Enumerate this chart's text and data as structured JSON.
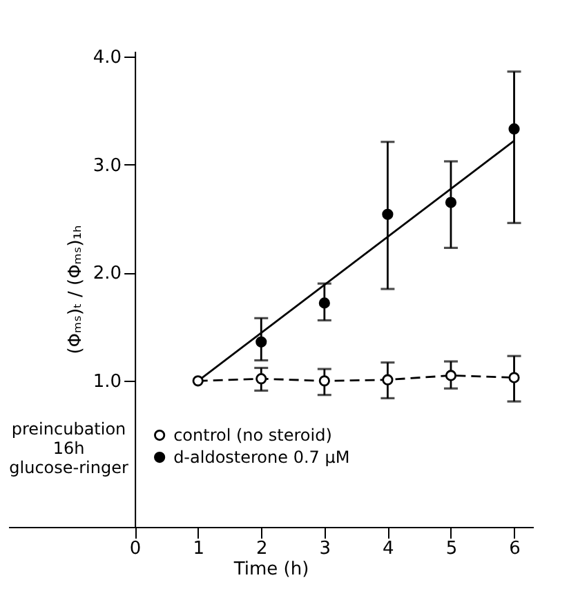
{
  "chart_data": {
    "type": "line",
    "xlabel": "Time (h)",
    "ylabel": "(Φₘₛ)ₜ / (Φₘₛ)₁ₕ",
    "x": [
      1,
      2,
      3,
      4,
      5,
      6
    ],
    "series": [
      {
        "name": "control (no steroid)",
        "type": "line",
        "color": "#000000",
        "line_style": "dashed",
        "marker": "circle",
        "values": [
          1.0,
          1.02,
          1.0,
          1.01,
          1.05,
          1.03
        ],
        "errors": [
          null,
          [
            0.91,
            1.12
          ],
          [
            0.87,
            1.11
          ],
          [
            0.84,
            1.17
          ],
          [
            0.93,
            1.18
          ],
          [
            0.81,
            1.23
          ]
        ]
      },
      {
        "name": "d-aldosterone  0.7 µM",
        "type": "scatter",
        "color": "#000000",
        "marker": "circle",
        "values": [
          null,
          1.36,
          1.72,
          2.54,
          2.65,
          3.33
        ],
        "errors": [
          null,
          [
            1.19,
            1.58
          ],
          [
            1.56,
            1.9
          ],
          [
            1.85,
            3.21
          ],
          [
            2.23,
            3.03
          ],
          [
            2.46,
            3.86
          ]
        ]
      },
      {
        "type": "line",
        "color": "#000000",
        "line_style": "solid",
        "marker": "none",
        "x": [
          1,
          6
        ],
        "values": [
          1.0,
          3.22
        ]
      }
    ],
    "xlim": [
      -2,
      6.3
    ],
    "ylim": [
      -0.35,
      4.05
    ],
    "xticks": [
      0,
      1,
      2,
      3,
      4,
      5,
      6
    ],
    "yticks": [
      {
        "value": 1,
        "label": "1.0"
      },
      {
        "value": 2,
        "label": "2.0"
      },
      {
        "value": 3,
        "label": "3.0"
      },
      {
        "value": 4,
        "label": "4.0"
      }
    ],
    "grid": false,
    "legend": "bottom",
    "annotations": [
      "preincubation\n16h\nglucose-ringer"
    ]
  }
}
